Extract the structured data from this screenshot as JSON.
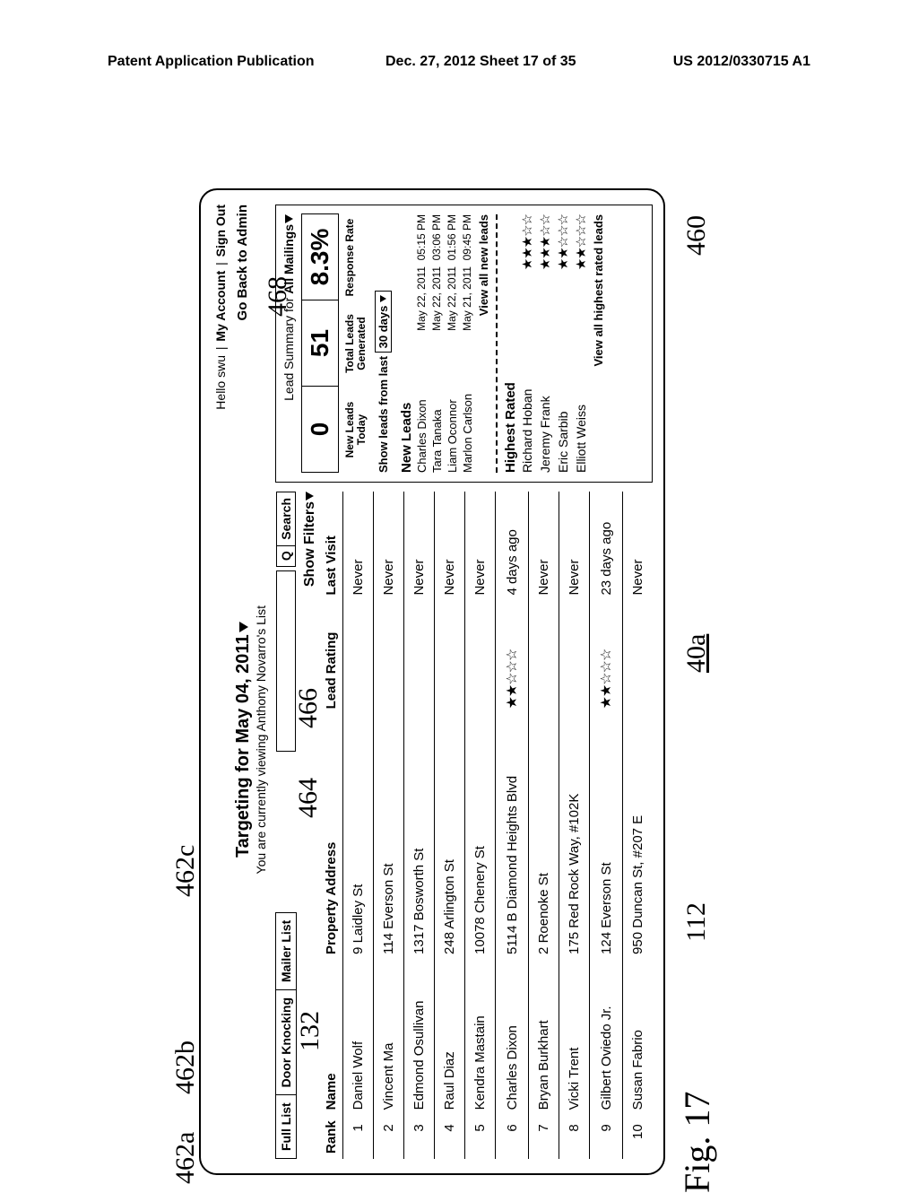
{
  "patent_header": {
    "left": "Patent Application Publication",
    "mid": "Dec. 27, 2012  Sheet 17 of 35",
    "right": "US 2012/0330715 A1"
  },
  "topbar": {
    "hello": "Hello swu",
    "my_account": "My Account",
    "sign_out": "Sign Out"
  },
  "title": {
    "main": "Targeting for May 04, 2011",
    "sub": "You are currently viewing Anthony Novarro's List",
    "go_back": "Go Back to Admin"
  },
  "tabs": {
    "full_list": "Full List",
    "door_knocking": "Door Knocking",
    "mailer_list": "Mailer List"
  },
  "search": {
    "mag": "Q",
    "button": "Search"
  },
  "filters_label": "Show Filters",
  "table": {
    "headers": {
      "rank": "Rank",
      "name": "Name",
      "addr": "Property Address",
      "rating": "Lead Rating",
      "visit": "Last Visit"
    },
    "rows": [
      {
        "rank": "1",
        "name": "Daniel Wolf",
        "addr": "9 Laidley St",
        "stars": 0,
        "visit": "Never"
      },
      {
        "rank": "2",
        "name": "Vincent Ma",
        "addr": "114 Everson St",
        "stars": 0,
        "visit": "Never"
      },
      {
        "rank": "3",
        "name": "Edmond Osullivan",
        "addr": "1317 Bosworth St",
        "stars": 0,
        "visit": "Never"
      },
      {
        "rank": "4",
        "name": "Raul Diaz",
        "addr": "248 Arlington St",
        "stars": 0,
        "visit": "Never"
      },
      {
        "rank": "5",
        "name": "Kendra Mastain",
        "addr": "10078 Chenery St",
        "stars": 0,
        "visit": "Never"
      },
      {
        "rank": "6",
        "name": "Charles Dixon",
        "addr": "5114 B Diamond Heights Blvd",
        "stars": 2,
        "visit": "4 days ago"
      },
      {
        "rank": "7",
        "name": "Bryan Burkhart",
        "addr": "2 Roenoke St",
        "stars": 0,
        "visit": "Never"
      },
      {
        "rank": "8",
        "name": "Vicki Trent",
        "addr": "175 Red Rock Way, #102K",
        "stars": 0,
        "visit": "Never"
      },
      {
        "rank": "9",
        "name": "Gilbert Oviedo Jr.",
        "addr": "124 Everson St",
        "stars": 2,
        "visit": "23 days ago"
      },
      {
        "rank": "10",
        "name": "Susan Fabrio",
        "addr": "950 Duncan St, #207 E",
        "stars": 0,
        "visit": "Never"
      }
    ]
  },
  "summary": {
    "title_prefix": "Lead Summary for ",
    "title_scope": "All Mailings",
    "big": {
      "new_today": "0",
      "total": "51",
      "rate": "8.3%"
    },
    "labels": {
      "new_today": "New Leads Today",
      "total": "Total Leads Generated",
      "rate": "Response Rate"
    },
    "show_leads_label": "Show leads from last",
    "show_leads_value": "30 days",
    "new_leads_h": "New Leads",
    "new_leads": [
      {
        "name": "Charles Dixon",
        "date": "May 22, 2011",
        "time": "05:15 PM"
      },
      {
        "name": "Tara Tanaka",
        "date": "May 22, 2011",
        "time": "03:06 PM"
      },
      {
        "name": "Liam Oconnor",
        "date": "May 22, 2011",
        "time": "01:56 PM"
      },
      {
        "name": "Marlon Carlson",
        "date": "May 21, 2011",
        "time": "09:45 PM"
      }
    ],
    "view_new": "View all new leads",
    "highest_h": "Highest Rated",
    "highest": [
      {
        "name": "Richard Hoban",
        "stars": 3
      },
      {
        "name": "Jeremy Frank",
        "stars": 3
      },
      {
        "name": "Eric Sarbib",
        "stars": 2
      },
      {
        "name": "Elliott Weiss",
        "stars": 2
      }
    ],
    "view_rated": "View all highest rated leads"
  },
  "refs": {
    "r462a": "462a",
    "r462b": "462b",
    "r462c": "462c",
    "r132": "132",
    "r464": "464",
    "r466": "466",
    "r468": "468",
    "r112": "112",
    "r40a": "40a",
    "r460": "460"
  },
  "fig_label": "Fig. 17"
}
